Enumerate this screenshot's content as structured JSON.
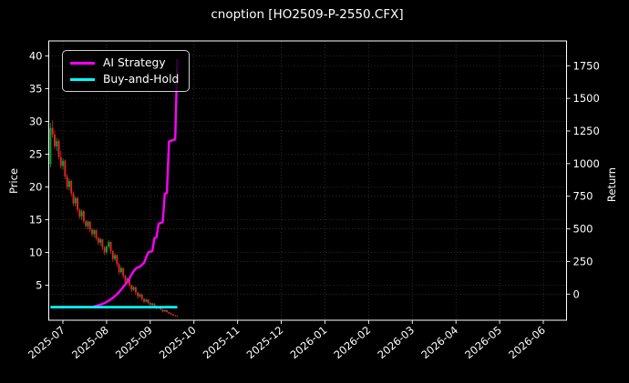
{
  "window": {
    "title": "cnoption [HO2509-P-2550.CFX]"
  },
  "colors": {
    "background": "#000000",
    "text": "#ffffff",
    "grid": "#3a3a3a",
    "spine": "#ffffff",
    "candle_up": "#00a62c",
    "candle_down": "#e62424",
    "strategy_line": "#ff00ff",
    "buyhold_line": "#00ffff"
  },
  "chart_data": {
    "type": "candlestick",
    "title": "cnoption [HO2509-P-2550.CFX]",
    "grid": true,
    "left_axis": {
      "label": "Price",
      "ticks": [
        40,
        35,
        30,
        25,
        20,
        15,
        10,
        5
      ],
      "range": [
        0.2,
        42.3
      ]
    },
    "right_axis": {
      "label": "Return",
      "ticks": [
        1750,
        1500,
        1250,
        1000,
        750,
        500,
        250,
        0
      ],
      "range": [
        -200,
        1940
      ]
    },
    "x_axis": {
      "tick_labels": [
        "2025-07",
        "2025-08",
        "2025-09",
        "2025-10",
        "2025-11",
        "2025-12",
        "2026-01",
        "2026-02",
        "2026-03",
        "2026-04",
        "2026-05",
        "2026-06"
      ],
      "label_rotation_deg": -40
    },
    "legend": {
      "position": "upper-left",
      "entries": [
        {
          "label": "AI Strategy",
          "color": "#ff00ff"
        },
        {
          "label": "Buy-and-Hold",
          "color": "#00ffff"
        }
      ]
    },
    "candles_ohlc": [
      [
        23.5,
        29.8,
        23.0,
        29.0
      ],
      [
        29.0,
        30.2,
        27.5,
        28.0
      ],
      [
        28.0,
        28.6,
        25.8,
        26.2
      ],
      [
        26.2,
        27.5,
        25.5,
        27.0
      ],
      [
        27.0,
        27.3,
        24.2,
        24.6
      ],
      [
        24.6,
        25.5,
        22.8,
        23.2
      ],
      [
        23.2,
        24.4,
        22.6,
        24.0
      ],
      [
        24.0,
        24.2,
        21.2,
        21.6
      ],
      [
        21.6,
        22.0,
        19.6,
        20.0
      ],
      [
        20.0,
        21.3,
        19.5,
        20.9
      ],
      [
        20.9,
        21.1,
        18.6,
        19.0
      ],
      [
        19.0,
        19.3,
        17.1,
        17.5
      ],
      [
        17.5,
        18.6,
        17.0,
        18.3
      ],
      [
        18.3,
        18.5,
        16.1,
        16.5
      ],
      [
        16.5,
        16.8,
        15.1,
        15.5
      ],
      [
        15.5,
        16.6,
        15.0,
        16.3
      ],
      [
        16.3,
        16.5,
        14.4,
        14.8
      ],
      [
        14.8,
        15.0,
        13.6,
        14.0
      ],
      [
        14.0,
        14.9,
        13.5,
        14.7
      ],
      [
        14.7,
        14.8,
        13.1,
        13.5
      ],
      [
        13.5,
        13.7,
        12.4,
        12.8
      ],
      [
        12.8,
        13.6,
        12.3,
        13.4
      ],
      [
        13.4,
        13.5,
        11.8,
        12.2
      ],
      [
        12.2,
        12.4,
        11.1,
        11.5
      ],
      [
        11.5,
        12.3,
        11.0,
        12.0
      ],
      [
        12.0,
        12.1,
        10.4,
        10.8
      ],
      [
        10.8,
        11.0,
        9.6,
        10.0
      ],
      [
        10.0,
        11.1,
        9.7,
        10.9
      ],
      [
        10.9,
        11.9,
        10.6,
        11.6
      ],
      [
        11.6,
        11.7,
        9.8,
        10.2
      ],
      [
        10.2,
        10.4,
        8.6,
        9.0
      ],
      [
        9.0,
        9.9,
        8.7,
        9.6
      ],
      [
        9.6,
        9.7,
        7.8,
        8.2
      ],
      [
        8.2,
        8.4,
        6.6,
        7.0
      ],
      [
        7.0,
        7.9,
        6.7,
        7.6
      ],
      [
        7.6,
        7.7,
        6.0,
        6.4
      ],
      [
        6.4,
        6.6,
        5.1,
        5.5
      ],
      [
        5.5,
        6.2,
        5.2,
        6.0
      ],
      [
        6.0,
        6.1,
        4.6,
        5.0
      ],
      [
        5.0,
        5.1,
        3.9,
        4.3
      ],
      [
        4.3,
        4.9,
        4.1,
        4.7
      ],
      [
        4.7,
        4.8,
        3.5,
        3.9
      ],
      [
        3.9,
        4.0,
        2.9,
        3.3
      ],
      [
        3.3,
        3.8,
        3.1,
        3.6
      ],
      [
        3.6,
        3.7,
        2.6,
        2.9
      ],
      [
        2.9,
        3.0,
        2.2,
        2.5
      ],
      [
        2.5,
        2.95,
        2.4,
        2.8
      ],
      [
        2.8,
        2.85,
        2.05,
        2.3
      ],
      [
        2.3,
        2.4,
        1.8,
        2.0
      ],
      [
        2.0,
        2.35,
        1.9,
        2.2
      ],
      [
        2.2,
        2.25,
        1.6,
        1.8
      ],
      [
        1.8,
        1.85,
        1.3,
        1.5
      ],
      [
        1.5,
        1.8,
        1.4,
        1.7
      ],
      [
        1.7,
        1.75,
        1.15,
        1.3
      ],
      [
        1.3,
        1.35,
        0.85,
        1.0
      ],
      [
        1.0,
        1.3,
        0.95,
        1.2
      ],
      [
        1.2,
        1.25,
        0.8,
        0.9
      ],
      [
        0.9,
        0.95,
        0.6,
        0.7
      ],
      [
        0.7,
        0.8,
        0.45,
        0.55
      ],
      [
        0.55,
        0.6,
        0.32,
        0.4
      ],
      [
        0.4,
        0.45,
        0.22,
        0.3
      ],
      [
        0.3,
        0.38,
        0.15,
        0.25
      ]
    ],
    "series": [
      {
        "name": "AI Strategy",
        "axis": "right",
        "color": "#ff00ff",
        "values": [
          -100,
          -100,
          -100,
          -100,
          -100,
          -100,
          -100,
          -100,
          -100,
          -100,
          -100,
          -100,
          -100,
          -100,
          -100,
          -100,
          -100,
          -100,
          -100,
          -100,
          -100,
          -95,
          -90,
          -85,
          -80,
          -75,
          -68,
          -60,
          -50,
          -40,
          -28,
          -15,
          0,
          15,
          35,
          55,
          75,
          95,
          120,
          150,
          175,
          195,
          205,
          210,
          225,
          240,
          280,
          320,
          325,
          330,
          430,
          435,
          540,
          545,
          550,
          770,
          775,
          1170,
          1175,
          1180,
          1185,
          1800
        ]
      },
      {
        "name": "Buy-and-Hold",
        "axis": "right",
        "color": "#00ffff",
        "values": [
          -100,
          -100,
          -100,
          -100,
          -100,
          -100,
          -100,
          -100,
          -100,
          -100,
          -100,
          -100,
          -100,
          -100,
          -100,
          -100,
          -100,
          -100,
          -100,
          -100,
          -100,
          -100,
          -100,
          -100,
          -100,
          -100,
          -100,
          -100,
          -100,
          -100,
          -100,
          -100,
          -100,
          -100,
          -100,
          -100,
          -100,
          -100,
          -100,
          -100,
          -100,
          -100,
          -100,
          -100,
          -100,
          -100,
          -100,
          -100,
          -100,
          -100,
          -100,
          -100,
          -100,
          -100,
          -100,
          -100,
          -100,
          -100,
          -100,
          -100,
          -100,
          -100
        ]
      }
    ]
  }
}
